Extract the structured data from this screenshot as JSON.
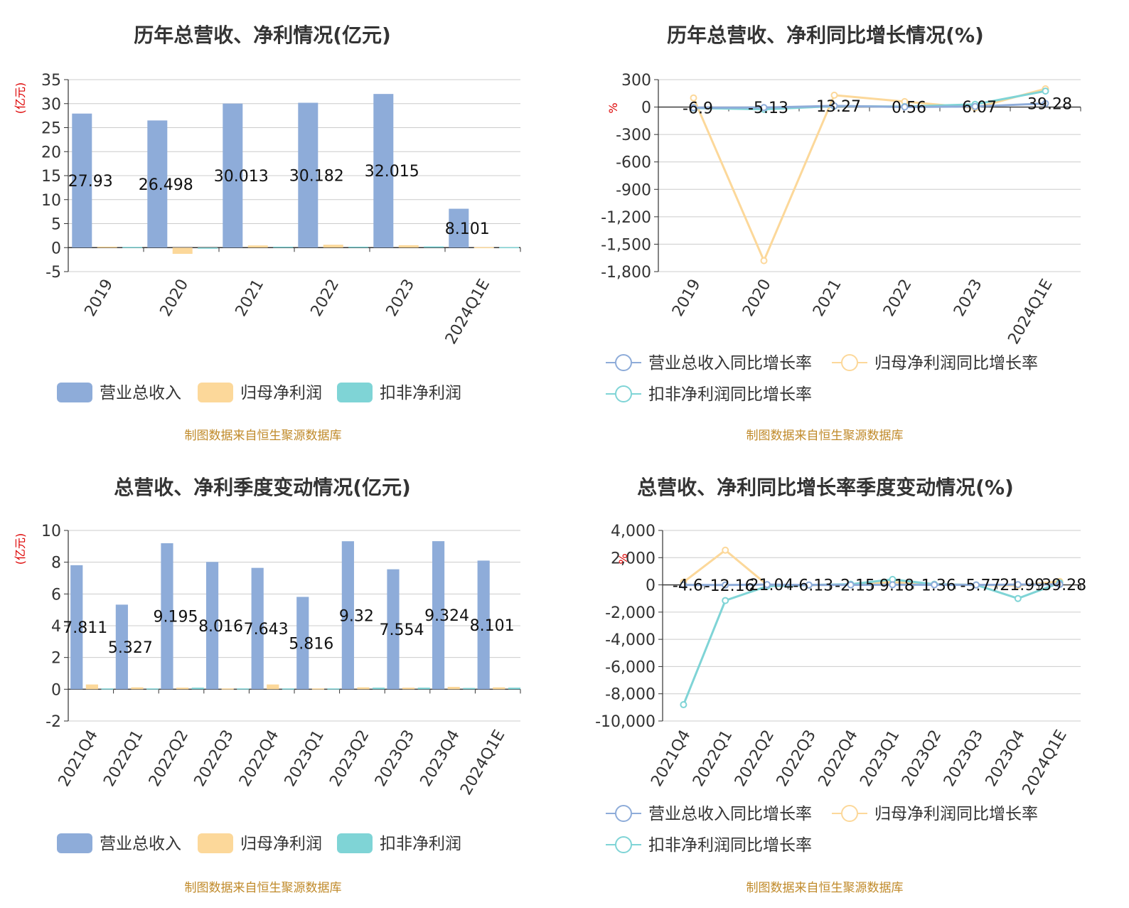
{
  "source_note": "制图数据来自恒生聚源数据库",
  "colors": {
    "revenue": "#8eacd9",
    "net_profit": "#fcd89a",
    "deducted_profit": "#7fd4d6",
    "axis": "#333333",
    "grid": "#cccccc",
    "unit_label": "#dd0000"
  },
  "chart_data": [
    {
      "type": "bar",
      "title": "历年总营收、净利情况(亿元)",
      "ylabel": "(亿元)",
      "ylim": [
        -5,
        35
      ],
      "yticks": [
        -5,
        0,
        5,
        10,
        15,
        20,
        25,
        30,
        35
      ],
      "categories": [
        "2019",
        "2020",
        "2021",
        "2022",
        "2023",
        "2024Q1E"
      ],
      "series": [
        {
          "name": "营业总收入",
          "values": [
            27.93,
            26.498,
            30.013,
            30.182,
            32.015,
            8.101
          ],
          "labels": [
            "27.93",
            "26.498",
            "30.013",
            "30.182",
            "32.015",
            "8.101"
          ]
        },
        {
          "name": "归母净利润",
          "values": [
            0.2,
            -1.3,
            0.45,
            0.6,
            0.5,
            0.1
          ]
        },
        {
          "name": "扣非净利润",
          "values": [
            0.15,
            -0.2,
            0.2,
            0.2,
            0.25,
            0.1
          ]
        }
      ],
      "grid": true,
      "legend": "bottom"
    },
    {
      "type": "line",
      "title": "历年总营收、净利同比增长情况(%)",
      "ylabel": "%",
      "ylim": [
        -1800,
        300
      ],
      "yticks": [
        -1800,
        -1500,
        -1200,
        -900,
        -600,
        -300,
        0,
        300
      ],
      "categories": [
        "2019",
        "2020",
        "2021",
        "2022",
        "2023",
        "2024Q1E"
      ],
      "series": [
        {
          "name": "营业总收入同比增长率",
          "values": [
            -6.9,
            -5.13,
            13.27,
            0.56,
            6.07,
            39.28
          ],
          "labels": [
            "-6.9",
            "-5.13",
            "13.27",
            "0.56",
            "6.07",
            "39.28"
          ]
        },
        {
          "name": "归母净利润同比增长率",
          "values": [
            100,
            -1680,
            130,
            60,
            -10,
            200
          ]
        },
        {
          "name": "扣非净利润同比增长率",
          "values": [
            -10,
            -25,
            10,
            5,
            30,
            175
          ]
        }
      ],
      "grid": true,
      "legend": "bottom"
    },
    {
      "type": "bar",
      "title": "总营收、净利季度变动情况(亿元)",
      "ylabel": "(亿元)",
      "ylim": [
        -2,
        10
      ],
      "yticks": [
        -2,
        0,
        2,
        4,
        6,
        8,
        10
      ],
      "categories": [
        "2021Q4",
        "2022Q1",
        "2022Q2",
        "2022Q3",
        "2022Q4",
        "2023Q1",
        "2023Q2",
        "2023Q3",
        "2023Q4",
        "2024Q1E"
      ],
      "series": [
        {
          "name": "营业总收入",
          "values": [
            7.811,
            5.327,
            9.195,
            8.016,
            7.643,
            5.816,
            9.32,
            7.554,
            9.324,
            8.101
          ],
          "labels": [
            "7.811",
            "5.327",
            "9.195",
            "8.016",
            "7.643",
            "5.816",
            "9.32",
            "7.554",
            "9.324",
            "8.101"
          ]
        },
        {
          "name": "归母净利润",
          "values": [
            0.3,
            0.12,
            0.1,
            0.05,
            0.3,
            0.05,
            0.12,
            0.1,
            0.15,
            0.12
          ]
        },
        {
          "name": "扣非净利润",
          "values": [
            0.05,
            0.05,
            0.1,
            0.05,
            0.05,
            0.05,
            0.1,
            0.1,
            0.08,
            0.1
          ]
        }
      ],
      "grid": true,
      "legend": "bottom"
    },
    {
      "type": "line",
      "title": "总营收、净利同比增长率季度变动情况(%)",
      "ylabel": "%",
      "ylim": [
        -10000,
        4000
      ],
      "yticks": [
        -10000,
        -8000,
        -6000,
        -4000,
        -2000,
        0,
        2000,
        4000
      ],
      "categories": [
        "2021Q4",
        "2022Q1",
        "2022Q2",
        "2022Q3",
        "2022Q4",
        "2023Q1",
        "2023Q2",
        "2023Q3",
        "2023Q4",
        "2024Q1E"
      ],
      "series": [
        {
          "name": "营业总收入同比增长率",
          "values": [
            -4.6,
            -12.16,
            21.04,
            -6.13,
            -2.15,
            9.18,
            1.36,
            -5.77,
            21.99,
            39.28
          ],
          "labels": [
            "-4.6",
            "-12.16",
            "21.04",
            "-6.13",
            "-2.15",
            "9.18",
            "1.36",
            "-5.77",
            "21.99",
            "39.28"
          ]
        },
        {
          "name": "归母净利润同比增长率",
          "values": [
            200,
            2550,
            0,
            -20,
            30,
            200,
            50,
            0,
            -50,
            250
          ]
        },
        {
          "name": "扣非净利润同比增长率",
          "values": [
            -8800,
            -1150,
            -100,
            -10,
            50,
            400,
            50,
            0,
            -1000,
            150
          ]
        }
      ],
      "grid": true,
      "legend": "bottom"
    }
  ]
}
